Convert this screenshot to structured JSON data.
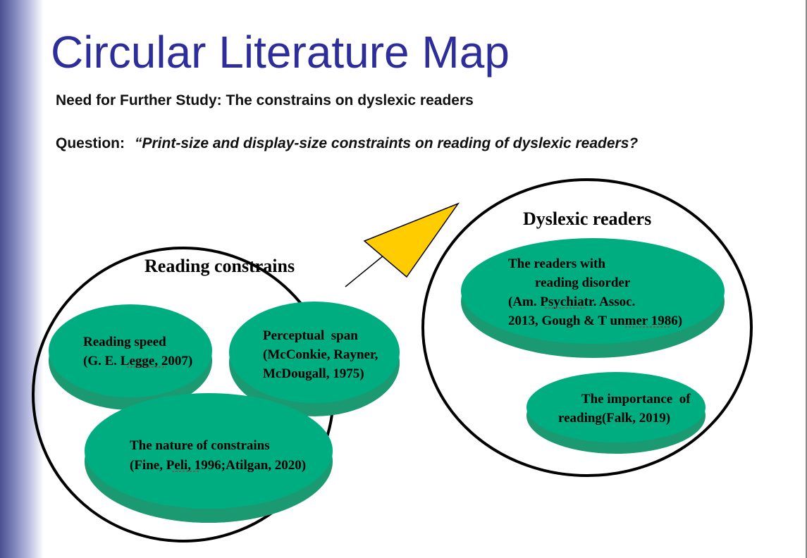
{
  "slide": {
    "title": "Circular Literature Map",
    "need_label": "Need for Further Study: The constrains on dyslexic readers",
    "question_label": "Question:",
    "question_text": "“Print-size and display-size constraints on reading of dyslexic readers?"
  },
  "diagram": {
    "colors": {
      "bubble_top": "#00ad80",
      "bubble_side": "#1b9a72",
      "arrow_fill": "#ffcc00",
      "circle_stroke": "#000000",
      "title_color": "#2e2e9a"
    },
    "clusters": [
      {
        "label": "Reading constrains",
        "bubbles": [
          {
            "lines": [
              "Reading speed",
              "(G. E. Legge, 2007)"
            ]
          },
          {
            "lines": [
              "Perceptual  span",
              "(McConkie, Rayner,",
              "McDougall, 1975)"
            ]
          },
          {
            "lines": [
              "The nature of constrains",
              "(Fine, Peli, 1996;Atilgan, 2020)"
            ]
          }
        ]
      },
      {
        "label": "Dyslexic readers",
        "bubbles": [
          {
            "lines": [
              "The readers with",
              " reading disorder",
              "(Am. Psychiatr. Assoc.",
              "2013, Gough & T unmer 1986)"
            ]
          },
          {
            "lines": [
              "The importance  of",
              "reading(Falk, 2019)"
            ]
          }
        ]
      }
    ]
  }
}
